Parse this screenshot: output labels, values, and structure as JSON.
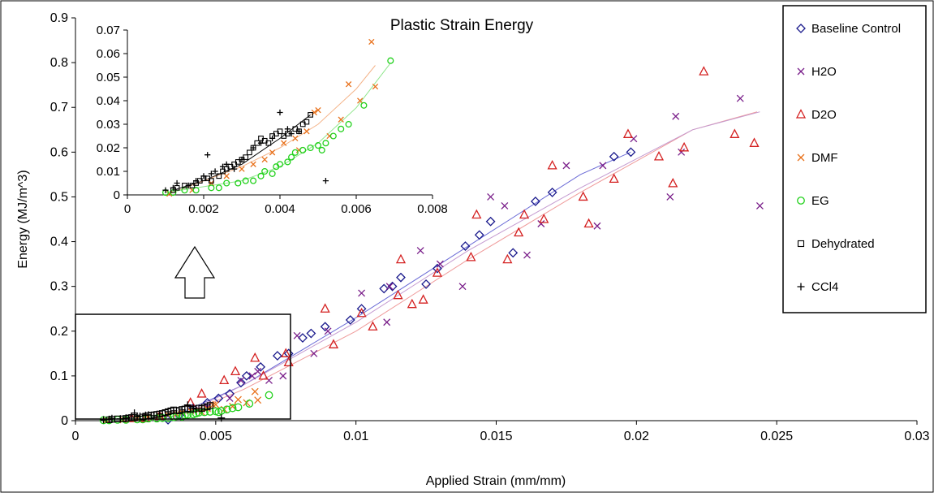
{
  "chart_data": [
    {
      "type": "scatter",
      "title": "Plastic Strain Energy",
      "xlabel": "Applied Strain (mm/mm)",
      "ylabel": "Energy (MJ/m^3)",
      "xlim": [
        0,
        0.03
      ],
      "ylim": [
        0,
        0.9
      ],
      "x_ticks": [
        0,
        0.005,
        0.01,
        0.015,
        0.02,
        0.025,
        0.03
      ],
      "x_tick_labels": [
        "0",
        "0.005",
        "0.01",
        "0.015",
        "0.02",
        "0.025",
        "0.03"
      ],
      "y_ticks": [
        0,
        0.1,
        0.2,
        0.3,
        0.4,
        0.5,
        0.6,
        0.7,
        0.8,
        0.9
      ],
      "y_tick_labels": [
        "0",
        "0.1",
        "0.2",
        "0.3",
        "0.4",
        "0.5",
        "0.6",
        "0.7",
        "0.8",
        "0.9"
      ],
      "grid": false,
      "legend_position": "right",
      "series": [
        {
          "name": "Baseline Control",
          "marker": "diamond",
          "color": "#1a1a8c",
          "x": [
            0.0033,
            0.0037,
            0.0042,
            0.0047,
            0.0051,
            0.0055,
            0.0059,
            0.0061,
            0.0066,
            0.0072,
            0.0076,
            0.0081,
            0.0084,
            0.0089,
            0.0098,
            0.0102,
            0.011,
            0.0113,
            0.0116,
            0.0125,
            0.0129,
            0.0139,
            0.0144,
            0.0148,
            0.0156,
            0.0164,
            0.017,
            0.0192,
            0.0198
          ],
          "y": [
            0.002,
            0.012,
            0.028,
            0.04,
            0.05,
            0.06,
            0.085,
            0.1,
            0.12,
            0.145,
            0.15,
            0.185,
            0.195,
            0.21,
            0.225,
            0.25,
            0.295,
            0.3,
            0.32,
            0.305,
            0.34,
            0.39,
            0.415,
            0.445,
            0.375,
            0.49,
            0.51,
            0.59,
            0.6
          ]
        },
        {
          "name": "H2O",
          "marker": "x",
          "color": "#7a1f8a",
          "x": [
            0.0047,
            0.0055,
            0.0059,
            0.0063,
            0.0065,
            0.0069,
            0.0074,
            0.0079,
            0.0085,
            0.009,
            0.0102,
            0.0111,
            0.0112,
            0.0123,
            0.013,
            0.0138,
            0.0148,
            0.0153,
            0.0161,
            0.0166,
            0.0175,
            0.0186,
            0.0188,
            0.0199,
            0.0212,
            0.0214,
            0.0216,
            0.0237,
            0.0244
          ],
          "y": [
            0.03,
            0.05,
            0.09,
            0.1,
            0.11,
            0.09,
            0.1,
            0.19,
            0.15,
            0.2,
            0.285,
            0.22,
            0.3,
            0.38,
            0.35,
            0.3,
            0.5,
            0.48,
            0.37,
            0.44,
            0.57,
            0.435,
            0.57,
            0.63,
            0.5,
            0.68,
            0.6,
            0.72,
            0.48
          ]
        },
        {
          "name": "D2O",
          "marker": "triangle",
          "color": "#d42020",
          "x": [
            0.002,
            0.0025,
            0.003,
            0.0041,
            0.0045,
            0.0053,
            0.0057,
            0.0064,
            0.0067,
            0.0075,
            0.0076,
            0.0089,
            0.0092,
            0.0102,
            0.0106,
            0.0115,
            0.0116,
            0.012,
            0.0124,
            0.0129,
            0.0141,
            0.0143,
            0.0154,
            0.0158,
            0.016,
            0.0167,
            0.017,
            0.0181,
            0.0183,
            0.0192,
            0.0197,
            0.0208,
            0.0213,
            0.0217,
            0.0224,
            0.0235,
            0.0242
          ],
          "y": [
            0.005,
            0.005,
            0.01,
            0.04,
            0.06,
            0.09,
            0.11,
            0.14,
            0.1,
            0.15,
            0.13,
            0.25,
            0.17,
            0.24,
            0.21,
            0.28,
            0.36,
            0.26,
            0.27,
            0.33,
            0.365,
            0.46,
            0.36,
            0.42,
            0.46,
            0.45,
            0.57,
            0.5,
            0.44,
            0.54,
            0.64,
            0.59,
            0.53,
            0.61,
            0.78,
            0.64,
            0.62
          ]
        },
        {
          "name": "DMF",
          "marker": "x",
          "color": "#e8701a",
          "x": [
            0.0011,
            0.0017,
            0.0022,
            0.0026,
            0.003,
            0.0033,
            0.0036,
            0.0038,
            0.0041,
            0.0044,
            0.0045,
            0.0047,
            0.0049,
            0.005,
            0.0053,
            0.0056,
            0.0058,
            0.0061,
            0.0064,
            0.0065
          ],
          "y": [
            0.0005,
            0.002,
            0.005,
            0.008,
            0.011,
            0.013,
            0.015,
            0.018,
            0.022,
            0.024,
            0.019,
            0.027,
            0.035,
            0.036,
            0.025,
            0.032,
            0.047,
            0.04,
            0.065,
            0.046
          ]
        },
        {
          "name": "EG",
          "marker": "circle",
          "color": "#22d11c",
          "x": [
            0.001,
            0.0012,
            0.0015,
            0.0018,
            0.0022,
            0.0024,
            0.0026,
            0.0029,
            0.0031,
            0.0033,
            0.0035,
            0.0036,
            0.0038,
            0.0039,
            0.004,
            0.0042,
            0.0043,
            0.0044,
            0.0046,
            0.0048,
            0.005,
            0.0051,
            0.0052,
            0.0054,
            0.0056,
            0.0058,
            0.0062,
            0.0069
          ],
          "y": [
            0.001,
            0.001,
            0.002,
            0.002,
            0.003,
            0.003,
            0.005,
            0.005,
            0.006,
            0.006,
            0.008,
            0.01,
            0.009,
            0.012,
            0.013,
            0.014,
            0.016,
            0.018,
            0.019,
            0.02,
            0.021,
            0.019,
            0.022,
            0.025,
            0.028,
            0.03,
            0.038,
            0.057
          ]
        },
        {
          "name": "Dehydrated",
          "marker": "square",
          "color": "#000000",
          "x": [
            0.0012,
            0.0013,
            0.0015,
            0.0017,
            0.0018,
            0.0019,
            0.002,
            0.0021,
            0.0022,
            0.0024,
            0.0025,
            0.0026,
            0.0027,
            0.0028,
            0.0029,
            0.003,
            0.0031,
            0.0032,
            0.0033,
            0.0034,
            0.0035,
            0.0036,
            0.0037,
            0.0038,
            0.0039,
            0.004,
            0.0041,
            0.0042,
            0.0044,
            0.0045,
            0.0046,
            0.0047,
            0.0048
          ],
          "y": [
            0.002,
            0.003,
            0.004,
            0.004,
            0.005,
            0.006,
            0.007,
            0.007,
            0.006,
            0.008,
            0.01,
            0.011,
            0.012,
            0.013,
            0.014,
            0.015,
            0.016,
            0.018,
            0.02,
            0.022,
            0.024,
            0.023,
            0.022,
            0.025,
            0.026,
            0.027,
            0.025,
            0.026,
            0.028,
            0.027,
            0.03,
            0.031,
            0.034
          ]
        },
        {
          "name": "CCl4",
          "marker": "plus",
          "color": "#000000",
          "x": [
            0.001,
            0.0012,
            0.0013,
            0.0016,
            0.0018,
            0.002,
            0.0021,
            0.0022,
            0.0023,
            0.0025,
            0.0026,
            0.0028,
            0.003,
            0.0033,
            0.0035,
            0.0038,
            0.004,
            0.0042,
            0.0043,
            0.0045,
            0.0052
          ],
          "y": [
            0.002,
            0.003,
            0.005,
            0.004,
            0.006,
            0.008,
            0.017,
            0.009,
            0.01,
            0.012,
            0.013,
            0.011,
            0.015,
            0.02,
            0.022,
            0.024,
            0.035,
            0.028,
            0.026,
            0.027,
            0.006
          ]
        }
      ],
      "trendlines": [
        {
          "name": "Baseline Control",
          "color": "#6b6bd6",
          "x": [
            0.0033,
            0.006,
            0.01,
            0.014,
            0.018,
            0.0198
          ],
          "y": [
            0.005,
            0.08,
            0.23,
            0.39,
            0.55,
            0.6
          ]
        },
        {
          "name": "D2O",
          "color": "#ef9a9a",
          "x": [
            0.0035,
            0.006,
            0.01,
            0.014,
            0.018,
            0.022,
            0.0243
          ],
          "y": [
            0.005,
            0.07,
            0.2,
            0.36,
            0.51,
            0.65,
            0.69
          ]
        },
        {
          "name": "H2O",
          "color": "#c49ad0",
          "x": [
            0.0035,
            0.006,
            0.01,
            0.014,
            0.018,
            0.022,
            0.0244
          ],
          "y": [
            0.005,
            0.08,
            0.22,
            0.38,
            0.52,
            0.65,
            0.69
          ]
        }
      ]
    },
    {
      "type": "scatter",
      "title": "",
      "xlabel": "",
      "ylabel": "",
      "xlim": [
        0,
        0.008
      ],
      "ylim": [
        0,
        0.07
      ],
      "x_ticks": [
        0,
        0.002,
        0.004,
        0.006,
        0.008
      ],
      "x_tick_labels": [
        "0",
        "0.002",
        "0.004",
        "0.006",
        "0.008"
      ],
      "y_ticks": [
        0,
        0.01,
        0.02,
        0.03,
        0.04,
        0.05,
        0.06,
        0.07
      ],
      "y_tick_labels": [
        "0",
        "0.01",
        "0.02",
        "0.03",
        "0.04",
        "0.05",
        "0.06",
        "0.07"
      ],
      "grid": false,
      "uses_series_from_main_chart": [
        "DMF",
        "EG",
        "Dehydrated",
        "CCl4"
      ],
      "trendlines": [
        {
          "name": "Dehydrated",
          "color": "#000000",
          "x": [
            0.0012,
            0.002,
            0.003,
            0.004,
            0.0048
          ],
          "y": [
            0.002,
            0.006,
            0.013,
            0.024,
            0.034
          ]
        },
        {
          "name": "DMF",
          "color": "#f4b48a",
          "x": [
            0.0011,
            0.003,
            0.004,
            0.005,
            0.006,
            0.0065
          ],
          "y": [
            0.0005,
            0.012,
            0.02,
            0.03,
            0.045,
            0.055
          ]
        },
        {
          "name": "EG",
          "color": "#8fe68c",
          "x": [
            0.001,
            0.003,
            0.004,
            0.005,
            0.006,
            0.0069
          ],
          "y": [
            0.001,
            0.006,
            0.012,
            0.022,
            0.037,
            0.056
          ]
        }
      ]
    }
  ],
  "legend": {
    "items": [
      {
        "label": "Baseline Control",
        "marker": "diamond",
        "color": "#1a1a8c"
      },
      {
        "label": "H2O",
        "marker": "x",
        "color": "#7a1f8a"
      },
      {
        "label": "D2O",
        "marker": "triangle",
        "color": "#d42020"
      },
      {
        "label": "DMF",
        "marker": "x",
        "color": "#e8701a"
      },
      {
        "label": "EG",
        "marker": "circle",
        "color": "#22d11c"
      },
      {
        "label": "Dehydrated",
        "marker": "square",
        "color": "#000000"
      },
      {
        "label": "CCl4",
        "marker": "plus",
        "color": "#000000"
      }
    ]
  }
}
